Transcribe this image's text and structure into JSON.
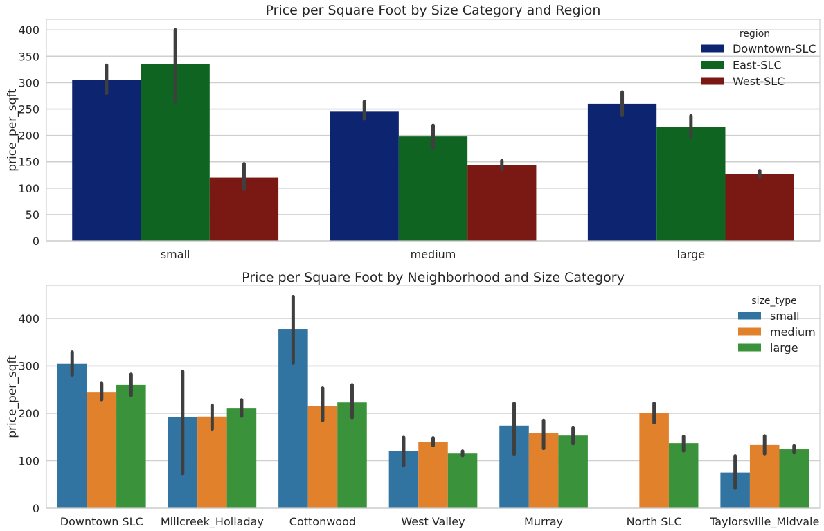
{
  "chart_data": [
    {
      "type": "bar",
      "title": "Price per Square Foot by Size Category and Region",
      "xlabel": "",
      "ylabel": "price_per_sqft",
      "ylim": [
        0,
        420
      ],
      "yticks": [
        0,
        50,
        100,
        150,
        200,
        250,
        300,
        350,
        400
      ],
      "grid": true,
      "legend_title": "region",
      "legend_position": "top-right",
      "categories": [
        "small",
        "medium",
        "large"
      ],
      "series": [
        {
          "name": "Downtown-SLC",
          "color": "#0d2570",
          "values": [
            305,
            245,
            260
          ],
          "ci": [
            [
              280,
              333
            ],
            [
              231,
              264
            ],
            [
              238,
              282
            ]
          ]
        },
        {
          "name": "East-SLC",
          "color": "#0e6420",
          "values": [
            335,
            198,
            216
          ],
          "ci": [
            [
              264,
              400
            ],
            [
              176,
              219
            ],
            [
              196,
              237
            ]
          ]
        },
        {
          "name": "West-SLC",
          "color": "#7a1914",
          "values": [
            120,
            144,
            127
          ],
          "ci": [
            [
              98,
              146
            ],
            [
              136,
              152
            ],
            [
              122,
              133
            ]
          ]
        }
      ]
    },
    {
      "type": "bar",
      "title": "Price per Square Foot by Neighborhood and Size Category",
      "xlabel": "",
      "ylabel": "price_per_sqft",
      "ylim": [
        0,
        470
      ],
      "yticks": [
        0,
        100,
        200,
        300,
        400
      ],
      "grid": true,
      "legend_title": "size_type",
      "legend_position": "top-right",
      "categories": [
        "Downtown SLC",
        "Millcreek_Holladay",
        "Cottonwood",
        "West Valley",
        "Murray",
        "North SLC",
        "Taylorsville_Midvale"
      ],
      "series": [
        {
          "name": "small",
          "color": "#3274a1",
          "values": [
            304,
            192,
            378,
            121,
            174,
            null,
            75
          ],
          "ci": [
            [
              281,
              329
            ],
            [
              73,
              288
            ],
            [
              306,
              446
            ],
            [
              90,
              149
            ],
            [
              114,
              221
            ],
            null,
            [
              42,
              110
            ]
          ]
        },
        {
          "name": "medium",
          "color": "#e1812c",
          "values": [
            245,
            193,
            215,
            140,
            159,
            201,
            133
          ],
          "ci": [
            [
              229,
              263
            ],
            [
              167,
              217
            ],
            [
              185,
              253
            ],
            [
              132,
              148
            ],
            [
              126,
              185
            ],
            [
              180,
              221
            ],
            [
              115,
              152
            ]
          ]
        },
        {
          "name": "large",
          "color": "#3a923a",
          "values": [
            260,
            210,
            223,
            115,
            153,
            137,
            124
          ],
          "ci": [
            [
              238,
              282
            ],
            [
              194,
              228
            ],
            [
              191,
              260
            ],
            [
              111,
              120
            ],
            [
              136,
              169
            ],
            [
              121,
              151
            ],
            [
              117,
              131
            ]
          ]
        }
      ]
    }
  ]
}
